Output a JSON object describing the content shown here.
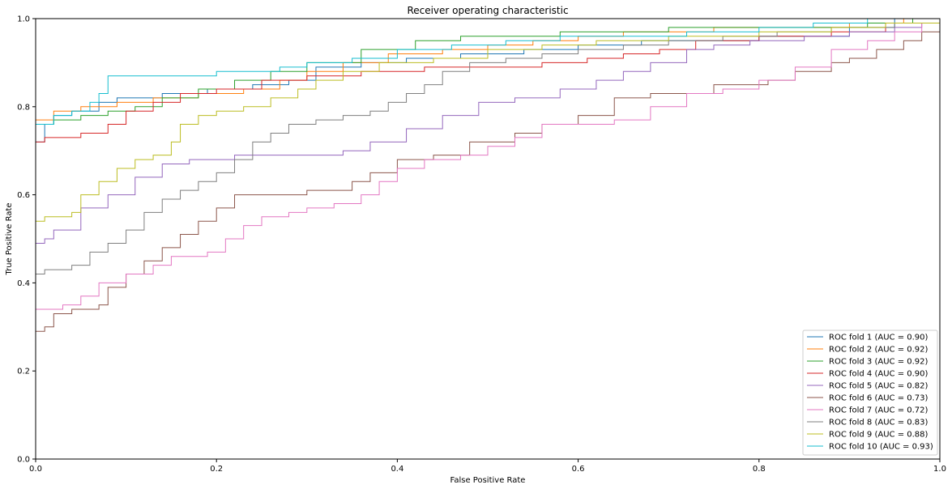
{
  "chart_data": {
    "type": "line",
    "title": "Receiver operating characteristic",
    "xlabel": "False Positive Rate",
    "ylabel": "True Positive Rate",
    "xlim": [
      0,
      1
    ],
    "ylim": [
      0,
      1
    ],
    "x_ticks": [
      "0.0",
      "0.2",
      "0.4",
      "0.6",
      "0.8",
      "1.0"
    ],
    "y_ticks": [
      "0.0",
      "0.2",
      "0.4",
      "0.6",
      "0.8",
      "1.0"
    ],
    "grid": false,
    "legend_position": "lower-right",
    "series": [
      {
        "name": "ROC fold 1 (AUC = 0.90)",
        "color": "#1f77b4",
        "points": [
          [
            0,
            0
          ],
          [
            0,
            0.72
          ],
          [
            0.01,
            0.72
          ],
          [
            0.01,
            0.76
          ],
          [
            0.02,
            0.78
          ],
          [
            0.04,
            0.79
          ],
          [
            0.07,
            0.81
          ],
          [
            0.09,
            0.82
          ],
          [
            0.14,
            0.83
          ],
          [
            0.19,
            0.84
          ],
          [
            0.24,
            0.85
          ],
          [
            0.28,
            0.86
          ],
          [
            0.31,
            0.89
          ],
          [
            0.36,
            0.9
          ],
          [
            0.41,
            0.91
          ],
          [
            0.47,
            0.92
          ],
          [
            0.54,
            0.93
          ],
          [
            0.6,
            0.94
          ],
          [
            0.67,
            0.95
          ],
          [
            0.73,
            0.95
          ],
          [
            0.8,
            0.96
          ],
          [
            0.9,
            0.98
          ],
          [
            0.95,
            1
          ],
          [
            1,
            1
          ]
        ]
      },
      {
        "name": "ROC fold 2 (AUC = 0.92)",
        "color": "#ff7f0e",
        "points": [
          [
            0,
            0
          ],
          [
            0,
            0.77
          ],
          [
            0.02,
            0.79
          ],
          [
            0.05,
            0.8
          ],
          [
            0.09,
            0.81
          ],
          [
            0.13,
            0.82
          ],
          [
            0.18,
            0.83
          ],
          [
            0.23,
            0.84
          ],
          [
            0.27,
            0.86
          ],
          [
            0.3,
            0.88
          ],
          [
            0.34,
            0.9
          ],
          [
            0.39,
            0.92
          ],
          [
            0.45,
            0.93
          ],
          [
            0.5,
            0.94
          ],
          [
            0.55,
            0.95
          ],
          [
            0.6,
            0.96
          ],
          [
            0.65,
            0.97
          ],
          [
            0.7,
            0.97
          ],
          [
            0.75,
            0.98
          ],
          [
            0.82,
            0.98
          ],
          [
            0.9,
            0.99
          ],
          [
            0.96,
            1
          ],
          [
            1,
            1
          ]
        ]
      },
      {
        "name": "ROC fold 3 (AUC = 0.92)",
        "color": "#2ca02c",
        "points": [
          [
            0,
            0
          ],
          [
            0,
            0.76
          ],
          [
            0.02,
            0.77
          ],
          [
            0.05,
            0.78
          ],
          [
            0.08,
            0.79
          ],
          [
            0.11,
            0.8
          ],
          [
            0.14,
            0.82
          ],
          [
            0.18,
            0.84
          ],
          [
            0.22,
            0.86
          ],
          [
            0.26,
            0.88
          ],
          [
            0.3,
            0.9
          ],
          [
            0.36,
            0.93
          ],
          [
            0.42,
            0.95
          ],
          [
            0.47,
            0.96
          ],
          [
            0.53,
            0.96
          ],
          [
            0.58,
            0.97
          ],
          [
            0.64,
            0.97
          ],
          [
            0.7,
            0.98
          ],
          [
            0.78,
            0.98
          ],
          [
            0.85,
            0.98
          ],
          [
            0.92,
            0.99
          ],
          [
            0.97,
            1
          ],
          [
            1,
            1
          ]
        ]
      },
      {
        "name": "ROC fold 4 (AUC = 0.90)",
        "color": "#d62728",
        "points": [
          [
            0,
            0
          ],
          [
            0,
            0.72
          ],
          [
            0.01,
            0.73
          ],
          [
            0.05,
            0.74
          ],
          [
            0.08,
            0.76
          ],
          [
            0.1,
            0.79
          ],
          [
            0.13,
            0.81
          ],
          [
            0.16,
            0.83
          ],
          [
            0.2,
            0.84
          ],
          [
            0.25,
            0.86
          ],
          [
            0.3,
            0.87
          ],
          [
            0.36,
            0.88
          ],
          [
            0.43,
            0.89
          ],
          [
            0.5,
            0.89
          ],
          [
            0.56,
            0.9
          ],
          [
            0.61,
            0.91
          ],
          [
            0.65,
            0.92
          ],
          [
            0.69,
            0.93
          ],
          [
            0.73,
            0.95
          ],
          [
            0.8,
            0.96
          ],
          [
            0.88,
            0.97
          ],
          [
            0.94,
            0.99
          ],
          [
            1,
            1
          ]
        ]
      },
      {
        "name": "ROC fold 5 (AUC = 0.82)",
        "color": "#9467bd",
        "points": [
          [
            0,
            0
          ],
          [
            0,
            0.49
          ],
          [
            0.01,
            0.5
          ],
          [
            0.02,
            0.52
          ],
          [
            0.05,
            0.57
          ],
          [
            0.08,
            0.6
          ],
          [
            0.11,
            0.64
          ],
          [
            0.14,
            0.67
          ],
          [
            0.17,
            0.68
          ],
          [
            0.22,
            0.69
          ],
          [
            0.3,
            0.69
          ],
          [
            0.34,
            0.7
          ],
          [
            0.37,
            0.72
          ],
          [
            0.41,
            0.75
          ],
          [
            0.45,
            0.78
          ],
          [
            0.49,
            0.81
          ],
          [
            0.53,
            0.82
          ],
          [
            0.58,
            0.84
          ],
          [
            0.62,
            0.86
          ],
          [
            0.65,
            0.88
          ],
          [
            0.68,
            0.9
          ],
          [
            0.72,
            0.93
          ],
          [
            0.75,
            0.94
          ],
          [
            0.79,
            0.95
          ],
          [
            0.85,
            0.96
          ],
          [
            0.9,
            0.97
          ],
          [
            0.95,
            0.98
          ],
          [
            0.98,
            0.99
          ],
          [
            1,
            1
          ]
        ]
      },
      {
        "name": "ROC fold 6 (AUC = 0.73)",
        "color": "#8c564b",
        "points": [
          [
            0,
            0
          ],
          [
            0,
            0.29
          ],
          [
            0.01,
            0.3
          ],
          [
            0.02,
            0.33
          ],
          [
            0.04,
            0.34
          ],
          [
            0.07,
            0.35
          ],
          [
            0.08,
            0.39
          ],
          [
            0.1,
            0.42
          ],
          [
            0.12,
            0.45
          ],
          [
            0.14,
            0.48
          ],
          [
            0.16,
            0.51
          ],
          [
            0.18,
            0.54
          ],
          [
            0.2,
            0.57
          ],
          [
            0.22,
            0.6
          ],
          [
            0.26,
            0.6
          ],
          [
            0.3,
            0.61
          ],
          [
            0.33,
            0.61
          ],
          [
            0.35,
            0.63
          ],
          [
            0.37,
            0.65
          ],
          [
            0.4,
            0.68
          ],
          [
            0.44,
            0.69
          ],
          [
            0.48,
            0.72
          ],
          [
            0.53,
            0.74
          ],
          [
            0.56,
            0.76
          ],
          [
            0.6,
            0.78
          ],
          [
            0.64,
            0.82
          ],
          [
            0.68,
            0.83
          ],
          [
            0.72,
            0.83
          ],
          [
            0.75,
            0.85
          ],
          [
            0.78,
            0.85
          ],
          [
            0.81,
            0.86
          ],
          [
            0.84,
            0.88
          ],
          [
            0.88,
            0.9
          ],
          [
            0.9,
            0.91
          ],
          [
            0.93,
            0.93
          ],
          [
            0.96,
            0.95
          ],
          [
            0.98,
            0.97
          ],
          [
            1,
            1
          ]
        ]
      },
      {
        "name": "ROC fold 7 (AUC = 0.72)",
        "color": "#e377c2",
        "points": [
          [
            0,
            0
          ],
          [
            0,
            0.34
          ],
          [
            0.03,
            0.35
          ],
          [
            0.05,
            0.37
          ],
          [
            0.07,
            0.4
          ],
          [
            0.1,
            0.42
          ],
          [
            0.13,
            0.44
          ],
          [
            0.15,
            0.46
          ],
          [
            0.19,
            0.47
          ],
          [
            0.21,
            0.5
          ],
          [
            0.23,
            0.53
          ],
          [
            0.25,
            0.55
          ],
          [
            0.28,
            0.56
          ],
          [
            0.3,
            0.57
          ],
          [
            0.33,
            0.58
          ],
          [
            0.36,
            0.6
          ],
          [
            0.38,
            0.63
          ],
          [
            0.4,
            0.66
          ],
          [
            0.43,
            0.68
          ],
          [
            0.47,
            0.69
          ],
          [
            0.5,
            0.71
          ],
          [
            0.53,
            0.73
          ],
          [
            0.56,
            0.76
          ],
          [
            0.6,
            0.76
          ],
          [
            0.64,
            0.77
          ],
          [
            0.68,
            0.8
          ],
          [
            0.72,
            0.83
          ],
          [
            0.76,
            0.84
          ],
          [
            0.8,
            0.86
          ],
          [
            0.84,
            0.89
          ],
          [
            0.88,
            0.93
          ],
          [
            0.92,
            0.95
          ],
          [
            0.95,
            0.97
          ],
          [
            0.98,
            0.99
          ],
          [
            1,
            1
          ]
        ]
      },
      {
        "name": "ROC fold 8 (AUC = 0.83)",
        "color": "#7f7f7f",
        "points": [
          [
            0,
            0
          ],
          [
            0,
            0.42
          ],
          [
            0.01,
            0.43
          ],
          [
            0.04,
            0.44
          ],
          [
            0.06,
            0.47
          ],
          [
            0.08,
            0.49
          ],
          [
            0.1,
            0.52
          ],
          [
            0.12,
            0.56
          ],
          [
            0.14,
            0.59
          ],
          [
            0.16,
            0.61
          ],
          [
            0.18,
            0.63
          ],
          [
            0.2,
            0.65
          ],
          [
            0.22,
            0.68
          ],
          [
            0.24,
            0.72
          ],
          [
            0.26,
            0.74
          ],
          [
            0.28,
            0.76
          ],
          [
            0.31,
            0.77
          ],
          [
            0.34,
            0.78
          ],
          [
            0.37,
            0.79
          ],
          [
            0.39,
            0.81
          ],
          [
            0.41,
            0.83
          ],
          [
            0.43,
            0.85
          ],
          [
            0.45,
            0.88
          ],
          [
            0.48,
            0.9
          ],
          [
            0.52,
            0.91
          ],
          [
            0.56,
            0.92
          ],
          [
            0.6,
            0.93
          ],
          [
            0.65,
            0.94
          ],
          [
            0.7,
            0.95
          ],
          [
            0.76,
            0.96
          ],
          [
            0.82,
            0.97
          ],
          [
            0.88,
            0.98
          ],
          [
            0.95,
            0.99
          ],
          [
            1,
            1
          ]
        ]
      },
      {
        "name": "ROC fold 9 (AUC = 0.88)",
        "color": "#bcbd22",
        "points": [
          [
            0,
            0
          ],
          [
            0,
            0.54
          ],
          [
            0.01,
            0.55
          ],
          [
            0.04,
            0.56
          ],
          [
            0.05,
            0.6
          ],
          [
            0.07,
            0.63
          ],
          [
            0.09,
            0.66
          ],
          [
            0.11,
            0.68
          ],
          [
            0.13,
            0.69
          ],
          [
            0.15,
            0.72
          ],
          [
            0.16,
            0.76
          ],
          [
            0.18,
            0.78
          ],
          [
            0.2,
            0.79
          ],
          [
            0.23,
            0.8
          ],
          [
            0.26,
            0.82
          ],
          [
            0.29,
            0.84
          ],
          [
            0.31,
            0.86
          ],
          [
            0.34,
            0.88
          ],
          [
            0.38,
            0.9
          ],
          [
            0.44,
            0.91
          ],
          [
            0.5,
            0.93
          ],
          [
            0.56,
            0.94
          ],
          [
            0.62,
            0.95
          ],
          [
            0.7,
            0.96
          ],
          [
            0.8,
            0.97
          ],
          [
            0.88,
            0.98
          ],
          [
            0.94,
            0.99
          ],
          [
            1,
            1
          ]
        ]
      },
      {
        "name": "ROC fold 10 (AUC = 0.93)",
        "color": "#17becf",
        "points": [
          [
            0,
            0
          ],
          [
            0,
            0.76
          ],
          [
            0.02,
            0.78
          ],
          [
            0.04,
            0.79
          ],
          [
            0.06,
            0.81
          ],
          [
            0.07,
            0.83
          ],
          [
            0.08,
            0.87
          ],
          [
            0.1,
            0.87
          ],
          [
            0.13,
            0.87
          ],
          [
            0.2,
            0.88
          ],
          [
            0.27,
            0.89
          ],
          [
            0.3,
            0.9
          ],
          [
            0.35,
            0.91
          ],
          [
            0.4,
            0.93
          ],
          [
            0.46,
            0.94
          ],
          [
            0.52,
            0.95
          ],
          [
            0.58,
            0.96
          ],
          [
            0.65,
            0.96
          ],
          [
            0.72,
            0.97
          ],
          [
            0.8,
            0.98
          ],
          [
            0.86,
            0.99
          ],
          [
            0.92,
            1
          ],
          [
            1,
            1
          ]
        ]
      }
    ]
  }
}
